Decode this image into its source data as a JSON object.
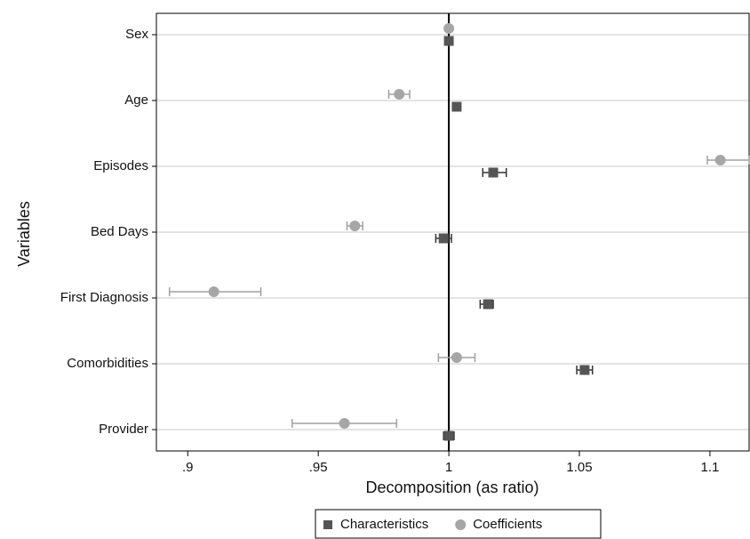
{
  "chart_data": {
    "type": "coefplot",
    "categories": [
      "Sex",
      "Age",
      "Episodes",
      "Bed Days",
      "First Diagnosis",
      "Comorbidities",
      "Provider"
    ],
    "series": [
      {
        "name": "Characteristics",
        "color": "#555555",
        "bar_color": "#333333",
        "marker": "square",
        "values": [
          1.0,
          1.003,
          1.017,
          0.998,
          1.015,
          1.052,
          1.0
        ],
        "lower": [
          null,
          null,
          1.013,
          0.995,
          1.012,
          1.049,
          0.998
        ],
        "upper": [
          null,
          null,
          1.022,
          1.001,
          1.017,
          1.055,
          1.002
        ]
      },
      {
        "name": "Coefficients",
        "color": "#a6a6a6",
        "bar_color": "#a0a0a0",
        "marker": "circle",
        "values": [
          1.0,
          0.981,
          1.104,
          0.964,
          0.91,
          1.003,
          0.96
        ],
        "lower": [
          null,
          0.977,
          1.099,
          0.961,
          0.893,
          0.996,
          0.94
        ],
        "upper": [
          null,
          0.985,
          1.115,
          0.967,
          0.928,
          1.01,
          0.98
        ]
      }
    ],
    "xlabel": "Decomposition (as ratio)",
    "ylabel": "Variables",
    "xlim": [
      0.888,
      1.115
    ],
    "xticks": [
      {
        "value": 0.9,
        "label": ".9"
      },
      {
        "value": 0.95,
        "label": ".95"
      },
      1,
      1.05,
      1.1
    ],
    "xline": 1,
    "grid": true,
    "legend": "bottom"
  }
}
